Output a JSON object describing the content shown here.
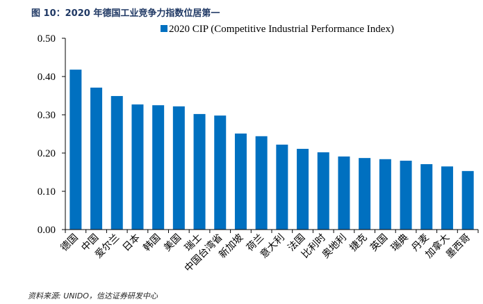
{
  "title": "图 10：2020 年德国工业竞争力指数位居第一",
  "source": "资料来源: UNIDO，信达证券研发中心",
  "chart_data": {
    "type": "bar",
    "title": "",
    "xlabel": "",
    "ylabel": "",
    "ylim": [
      0,
      0.5
    ],
    "yticks": [
      "0.00",
      "0.10",
      "0.20",
      "0.30",
      "0.40",
      "0.50"
    ],
    "legend_position": "top-right",
    "grid": false,
    "color": "#0070c0",
    "categories": [
      "德国",
      "中国",
      "爱尔兰",
      "日本",
      "韩国",
      "美国",
      "瑞士",
      "中国台湾省",
      "新加坡",
      "荷兰",
      "意大利",
      "法国",
      "比利时",
      "奥地利",
      "捷克",
      "英国",
      "瑞典",
      "丹麦",
      "加拿大",
      "墨西哥"
    ],
    "series": [
      {
        "name": "2020 CIP (Competitive Industrial Performance Index)",
        "values": [
          0.418,
          0.371,
          0.349,
          0.327,
          0.325,
          0.322,
          0.302,
          0.298,
          0.251,
          0.244,
          0.222,
          0.211,
          0.202,
          0.191,
          0.187,
          0.184,
          0.18,
          0.171,
          0.165,
          0.153
        ]
      }
    ]
  }
}
